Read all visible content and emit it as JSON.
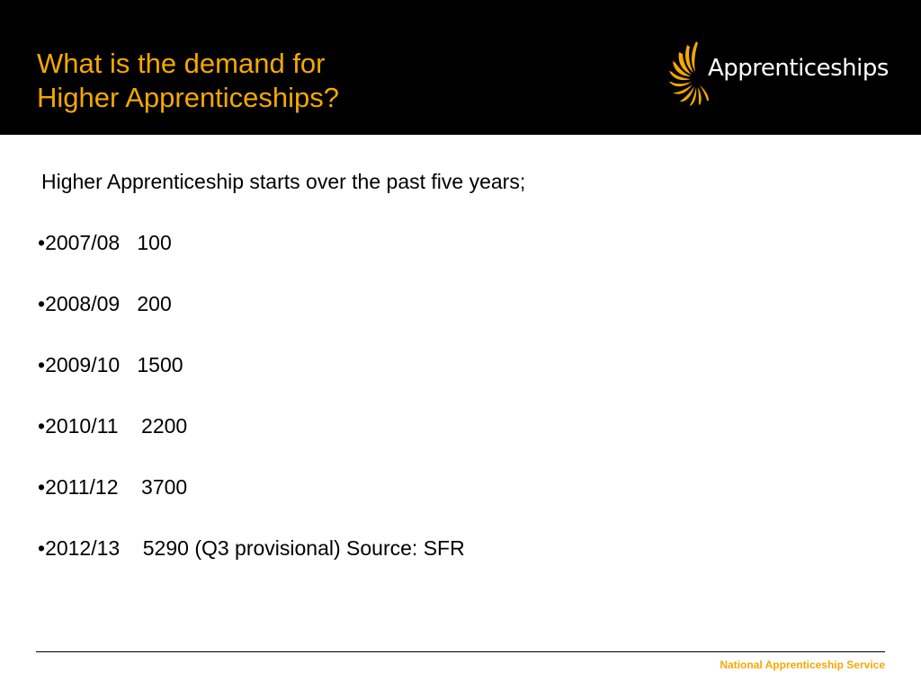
{
  "slide": {
    "title_line1": "What is the demand for",
    "title_line2": "Higher Apprenticeships?",
    "logo_text": "Apprenticeships",
    "intro": "Higher Apprenticeship starts over the past five years;",
    "bullet_char": "•",
    "bullets": [
      {
        "year": "2007/08",
        "value": "100",
        "text": "2007/08   100"
      },
      {
        "year": "2008/09",
        "value": "200",
        "text": "2008/09   200"
      },
      {
        "year": "2009/10",
        "value": "1500",
        "text": "2009/10   1500"
      },
      {
        "year": "2010/11",
        "value": "2200",
        "text": "2010/11    2200"
      },
      {
        "year": "2011/12",
        "value": "3700",
        "text": "2011/12    3700"
      },
      {
        "year": "2012/13",
        "value": "5290",
        "text": "2012/13    5290 (Q3 provisional) Source: SFR"
      }
    ],
    "footer": "National Apprenticeship Service"
  },
  "colors": {
    "header_bg": "#000000",
    "accent": "#f5a800",
    "body_text": "#000000",
    "background": "#ffffff"
  },
  "icons": {
    "logo_mark": "sunburst-logo-icon"
  }
}
